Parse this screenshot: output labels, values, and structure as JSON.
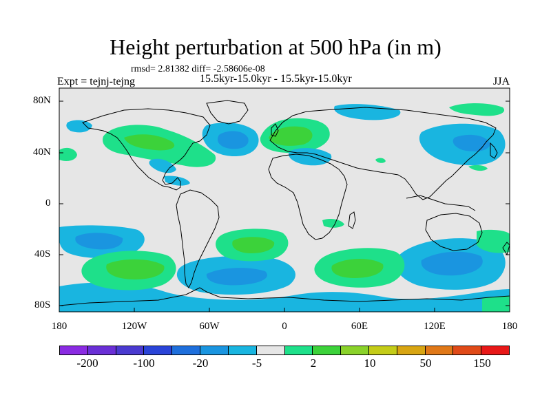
{
  "title": "Height perturbation at 500 hPa (in m)",
  "stats_text": "rmsd= 2.81382 diff= -2.58606e-08",
  "left_label": "Expt = tejnj-tejng",
  "center_label": "15.5kyr-15.0kyr - 15.5kyr-15.0kyr",
  "right_label": "JJA",
  "lat_labels": [
    "80N",
    "40N",
    "0",
    "40S",
    "80S"
  ],
  "lon_labels": [
    "180",
    "120W",
    "60W",
    "0",
    "60E",
    "120E",
    "180"
  ],
  "colorbar": {
    "colors": [
      "#8a2be2",
      "#6a2fd6",
      "#4a3ad0",
      "#2a44d8",
      "#1e6fdc",
      "#1a95e0",
      "#19b5e0",
      "#e6e6e6",
      "#1ee08a",
      "#3cd23a",
      "#8ad22a",
      "#c4cc18",
      "#d8a512",
      "#e07818",
      "#e04a18",
      "#e81818"
    ],
    "labels": [
      "-200",
      "-100",
      "-20",
      "-5",
      "2",
      "10",
      "50",
      "150"
    ]
  },
  "palette": {
    "neutral": "#e6e6e6",
    "blue_dark": "#1e6fdc",
    "blue_mid": "#1a95e0",
    "blue_light": "#19b5e0",
    "green": "#1ee08a",
    "green_dark": "#3cd23a"
  }
}
